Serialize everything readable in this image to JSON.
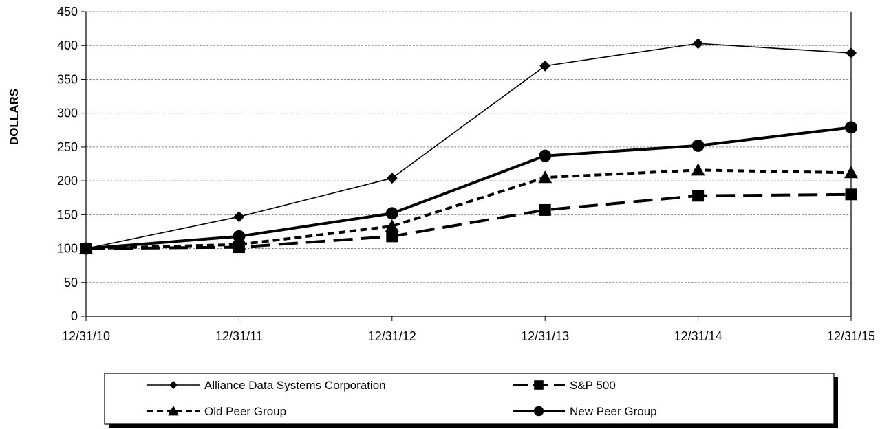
{
  "chart_data": {
    "type": "line",
    "title": "",
    "xlabel": "",
    "ylabel": "DOLLARS",
    "categories": [
      "12/31/10",
      "12/31/11",
      "12/31/12",
      "12/31/13",
      "12/31/14",
      "12/31/15"
    ],
    "ylim": [
      0,
      450
    ],
    "yticks": [
      0,
      50,
      100,
      150,
      200,
      250,
      300,
      350,
      400,
      450
    ],
    "grid": "horizontal dashed",
    "legend_position": "bottom",
    "series": [
      {
        "name": "Alliance Data Systems Corporation",
        "values": [
          100,
          147,
          204,
          370,
          403,
          389
        ],
        "marker": "diamond",
        "line_style": "solid-thin",
        "color": "#000000"
      },
      {
        "name": "S&P 500",
        "values": [
          100,
          102,
          118,
          157,
          178,
          180
        ],
        "marker": "square",
        "line_style": "long-dash",
        "color": "#000000"
      },
      {
        "name": "Old Peer Group",
        "values": [
          100,
          106,
          133,
          205,
          216,
          212
        ],
        "marker": "triangle",
        "line_style": "short-dash",
        "color": "#000000"
      },
      {
        "name": "New Peer Group",
        "values": [
          100,
          118,
          152,
          237,
          252,
          279
        ],
        "marker": "circle",
        "line_style": "solid-thick",
        "color": "#000000"
      }
    ]
  }
}
